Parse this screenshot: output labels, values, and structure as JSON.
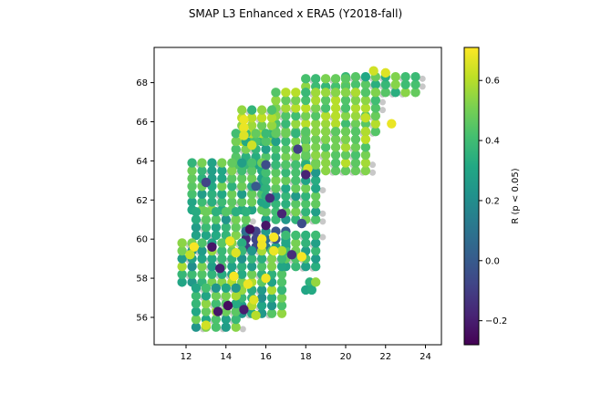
{
  "chart_data": {
    "type": "scatter",
    "title": "SMAP L3 Enhanced x ERA5 (Y2018-fall)",
    "xlabel": "",
    "ylabel": "",
    "xlim": [
      10.4,
      24.8
    ],
    "ylim": [
      54.6,
      69.8
    ],
    "xticks": [
      12,
      14,
      16,
      18,
      20,
      22,
      24
    ],
    "yticks": [
      56,
      58,
      60,
      62,
      64,
      66,
      68
    ],
    "colorbar": {
      "label": "R (p < 0.05)",
      "range": [
        -0.28,
        0.71
      ],
      "colormap": "viridis",
      "ticks": [
        -0.2,
        0.0,
        0.2,
        0.4,
        0.6
      ],
      "tick_labels": [
        "−0.2",
        "0.0",
        "0.2",
        "0.4",
        "0.6"
      ]
    },
    "background_land_color": "#c8c8c8",
    "grid": false,
    "legend": "none",
    "regions": [
      {
        "lon": [
          20.0,
          23.5
        ],
        "lat": [
          67.5,
          68.4
        ],
        "r": 0.42,
        "spread": 0.12
      },
      {
        "lon": [
          18.0,
          20.0
        ],
        "lat": [
          67.8,
          68.4
        ],
        "r": 0.45,
        "spread": 0.1
      },
      {
        "lon": [
          16.5,
          21.5
        ],
        "lat": [
          65.5,
          67.8
        ],
        "r": 0.5,
        "spread": 0.12
      },
      {
        "lon": [
          14.8,
          16.5
        ],
        "lat": [
          65.0,
          66.8
        ],
        "r": 0.48,
        "spread": 0.15
      },
      {
        "lon": [
          14.5,
          18.0
        ],
        "lat": [
          63.8,
          65.5
        ],
        "r": 0.4,
        "spread": 0.12
      },
      {
        "lon": [
          18.0,
          21.0
        ],
        "lat": [
          63.5,
          65.5
        ],
        "r": 0.52,
        "spread": 0.1
      },
      {
        "lon": [
          12.3,
          16.0
        ],
        "lat": [
          61.5,
          64.0
        ],
        "r": 0.4,
        "spread": 0.14
      },
      {
        "lon": [
          16.0,
          18.5
        ],
        "lat": [
          61.0,
          63.8
        ],
        "r": 0.38,
        "spread": 0.14
      },
      {
        "lon": [
          12.5,
          15.0
        ],
        "lat": [
          60.2,
          61.5
        ],
        "r": 0.38,
        "spread": 0.15
      },
      {
        "lon": [
          15.0,
          17.0
        ],
        "lat": [
          59.6,
          60.6
        ],
        "r": 0.05,
        "spread": 0.25
      },
      {
        "lon": [
          17.0,
          18.8
        ],
        "lat": [
          58.6,
          60.4
        ],
        "r": 0.4,
        "spread": 0.14
      },
      {
        "lon": [
          11.8,
          14.8
        ],
        "lat": [
          57.8,
          60.0
        ],
        "r": 0.4,
        "spread": 0.2
      },
      {
        "lon": [
          14.8,
          17.0
        ],
        "lat": [
          56.2,
          59.5
        ],
        "r": 0.4,
        "spread": 0.2
      },
      {
        "lon": [
          12.5,
          14.8
        ],
        "lat": [
          55.5,
          57.8
        ],
        "r": 0.42,
        "spread": 0.2
      }
    ],
    "highlights": [
      {
        "lon": 22.0,
        "lat": 68.5,
        "r": 0.66
      },
      {
        "lon": 21.4,
        "lat": 68.6,
        "r": 0.64
      },
      {
        "lon": 22.3,
        "lat": 65.9,
        "r": 0.68
      },
      {
        "lon": 21.0,
        "lat": 66.2,
        "r": 0.62
      },
      {
        "lon": 14.9,
        "lat": 66.1,
        "r": 0.68
      },
      {
        "lon": 14.9,
        "lat": 65.7,
        "r": 0.68
      },
      {
        "lon": 14.9,
        "lat": 65.3,
        "r": 0.66
      },
      {
        "lon": 15.3,
        "lat": 64.8,
        "r": 0.64
      },
      {
        "lon": 17.6,
        "lat": 64.6,
        "r": -0.1
      },
      {
        "lon": 18.1,
        "lat": 63.6,
        "r": 0.65
      },
      {
        "lon": 18.0,
        "lat": 63.3,
        "r": -0.18
      },
      {
        "lon": 16.0,
        "lat": 63.8,
        "r": -0.05
      },
      {
        "lon": 15.5,
        "lat": 62.7,
        "r": 0.0
      },
      {
        "lon": 16.2,
        "lat": 62.1,
        "r": -0.15
      },
      {
        "lon": 16.4,
        "lat": 60.1,
        "r": 0.7
      },
      {
        "lon": 15.8,
        "lat": 60.0,
        "r": 0.7
      },
      {
        "lon": 15.8,
        "lat": 59.7,
        "r": 0.69
      },
      {
        "lon": 16.4,
        "lat": 59.4,
        "r": 0.68
      },
      {
        "lon": 15.2,
        "lat": 60.5,
        "r": -0.25
      },
      {
        "lon": 16.0,
        "lat": 60.7,
        "r": -0.22
      },
      {
        "lon": 14.2,
        "lat": 59.9,
        "r": 0.68
      },
      {
        "lon": 14.5,
        "lat": 59.3,
        "r": 0.66
      },
      {
        "lon": 12.4,
        "lat": 59.6,
        "r": 0.7
      },
      {
        "lon": 12.2,
        "lat": 59.2,
        "r": 0.62
      },
      {
        "lon": 13.3,
        "lat": 59.6,
        "r": -0.22
      },
      {
        "lon": 14.4,
        "lat": 58.1,
        "r": 0.7
      },
      {
        "lon": 13.7,
        "lat": 58.5,
        "r": -0.2
      },
      {
        "lon": 15.1,
        "lat": 57.7,
        "r": 0.68
      },
      {
        "lon": 16.0,
        "lat": 58.0,
        "r": 0.69
      },
      {
        "lon": 15.4,
        "lat": 56.9,
        "r": 0.66
      },
      {
        "lon": 14.1,
        "lat": 56.6,
        "r": -0.25
      },
      {
        "lon": 14.9,
        "lat": 56.4,
        "r": -0.2
      },
      {
        "lon": 13.6,
        "lat": 56.3,
        "r": -0.22
      },
      {
        "lon": 13.0,
        "lat": 55.6,
        "r": 0.64
      },
      {
        "lon": 15.5,
        "lat": 56.1,
        "r": 0.6
      },
      {
        "lon": 17.3,
        "lat": 59.2,
        "r": -0.15
      },
      {
        "lon": 17.8,
        "lat": 59.1,
        "r": 0.7
      },
      {
        "lon": 18.2,
        "lat": 57.8,
        "r": 0.35
      },
      {
        "lon": 18.0,
        "lat": 57.4,
        "r": 0.3
      },
      {
        "lon": 18.3,
        "lat": 57.4,
        "r": 0.32
      },
      {
        "lon": 18.5,
        "lat": 57.8,
        "r": 0.55
      },
      {
        "lon": 17.8,
        "lat": 60.8,
        "r": -0.05
      },
      {
        "lon": 16.8,
        "lat": 61.3,
        "r": -0.18
      },
      {
        "lon": 13.0,
        "lat": 62.9,
        "r": -0.08
      }
    ]
  }
}
